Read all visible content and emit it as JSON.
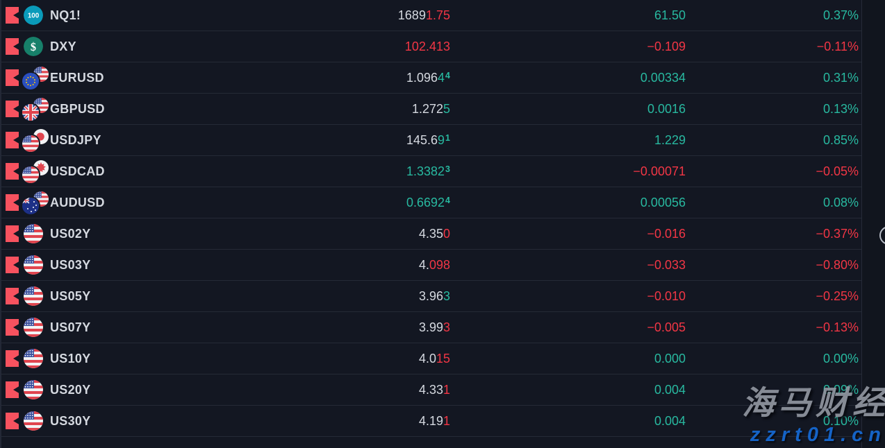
{
  "colors": {
    "up": "#28b9a0",
    "down": "#f23645",
    "neutral": "#d5d9e0",
    "flag": "#f7525f"
  },
  "watermark": {
    "line1": "海马财经",
    "line2": "zzrt01.cn"
  },
  "rows": [
    {
      "symbol": "NQ1!",
      "icon": {
        "name": "nq100-badge-icon",
        "kind": "badge",
        "badge": "nq",
        "label": "100"
      },
      "price_segments": [
        {
          "text": "1689",
          "dir": "neutral"
        },
        {
          "text": "1.75",
          "dir": "down"
        }
      ],
      "price_sup": null,
      "change": "61.50",
      "change_dir": "up",
      "percent": "0.37%",
      "percent_dir": "up"
    },
    {
      "symbol": "DXY",
      "icon": {
        "name": "dollar-index-icon",
        "kind": "badge",
        "badge": "dxy",
        "label": "$"
      },
      "price_segments": [
        {
          "text": "102.413",
          "dir": "down"
        }
      ],
      "price_sup": null,
      "change": "−0.109",
      "change_dir": "down",
      "percent": "−0.11%",
      "percent_dir": "down"
    },
    {
      "symbol": "EURUSD",
      "icon": {
        "name": "eurusd-pair-flags-icon",
        "kind": "pair",
        "front": "eu",
        "back": "us"
      },
      "price_segments": [
        {
          "text": "1.096",
          "dir": "neutral"
        },
        {
          "text": "4",
          "dir": "up"
        }
      ],
      "price_sup": {
        "text": "4",
        "dir": "up"
      },
      "change": "0.00334",
      "change_dir": "up",
      "percent": "0.31%",
      "percent_dir": "up"
    },
    {
      "symbol": "GBPUSD",
      "icon": {
        "name": "gbpusd-pair-flags-icon",
        "kind": "pair",
        "front": "gb",
        "back": "us"
      },
      "price_segments": [
        {
          "text": "1.272",
          "dir": "neutral"
        },
        {
          "text": "5",
          "dir": "up"
        }
      ],
      "price_sup": null,
      "change": "0.0016",
      "change_dir": "up",
      "percent": "0.13%",
      "percent_dir": "up"
    },
    {
      "symbol": "USDJPY",
      "icon": {
        "name": "usdjpy-pair-flags-icon",
        "kind": "pair",
        "front": "us",
        "back": "jp"
      },
      "price_segments": [
        {
          "text": "145.6",
          "dir": "neutral"
        },
        {
          "text": "9",
          "dir": "up"
        }
      ],
      "price_sup": {
        "text": "1",
        "dir": "up"
      },
      "change": "1.229",
      "change_dir": "up",
      "percent": "0.85%",
      "percent_dir": "up"
    },
    {
      "symbol": "USDCAD",
      "icon": {
        "name": "usdcad-pair-flags-icon",
        "kind": "pair",
        "front": "us",
        "back": "ca"
      },
      "price_segments": [
        {
          "text": "1.3382",
          "dir": "up"
        }
      ],
      "price_sup": {
        "text": "3",
        "dir": "up"
      },
      "change": "−0.00071",
      "change_dir": "down",
      "percent": "−0.05%",
      "percent_dir": "down"
    },
    {
      "symbol": "AUDUSD",
      "icon": {
        "name": "audusd-pair-flags-icon",
        "kind": "pair",
        "front": "au",
        "back": "us"
      },
      "price_segments": [
        {
          "text": "0.6692",
          "dir": "up"
        }
      ],
      "price_sup": {
        "text": "4",
        "dir": "up"
      },
      "change": "0.00056",
      "change_dir": "up",
      "percent": "0.08%",
      "percent_dir": "up"
    },
    {
      "symbol": "US02Y",
      "icon": {
        "name": "us-flag-icon",
        "kind": "single",
        "flag": "us"
      },
      "price_segments": [
        {
          "text": "4.35",
          "dir": "neutral"
        },
        {
          "text": "0",
          "dir": "down"
        }
      ],
      "price_sup": null,
      "change": "−0.016",
      "change_dir": "down",
      "percent": "−0.37%",
      "percent_dir": "down"
    },
    {
      "symbol": "US03Y",
      "icon": {
        "name": "us-flag-icon",
        "kind": "single",
        "flag": "us"
      },
      "price_segments": [
        {
          "text": "4.",
          "dir": "neutral"
        },
        {
          "text": "098",
          "dir": "down"
        }
      ],
      "price_sup": null,
      "change": "−0.033",
      "change_dir": "down",
      "percent": "−0.80%",
      "percent_dir": "down"
    },
    {
      "symbol": "US05Y",
      "icon": {
        "name": "us-flag-icon",
        "kind": "single",
        "flag": "us"
      },
      "price_segments": [
        {
          "text": "3.96",
          "dir": "neutral"
        },
        {
          "text": "3",
          "dir": "up"
        }
      ],
      "price_sup": null,
      "change": "−0.010",
      "change_dir": "down",
      "percent": "−0.25%",
      "percent_dir": "down"
    },
    {
      "symbol": "US07Y",
      "icon": {
        "name": "us-flag-icon",
        "kind": "single",
        "flag": "us"
      },
      "price_segments": [
        {
          "text": "3.99",
          "dir": "neutral"
        },
        {
          "text": "3",
          "dir": "down"
        }
      ],
      "price_sup": null,
      "change": "−0.005",
      "change_dir": "down",
      "percent": "−0.13%",
      "percent_dir": "down"
    },
    {
      "symbol": "US10Y",
      "icon": {
        "name": "us-flag-icon",
        "kind": "single",
        "flag": "us"
      },
      "price_segments": [
        {
          "text": "4.0",
          "dir": "neutral"
        },
        {
          "text": "15",
          "dir": "down"
        }
      ],
      "price_sup": null,
      "change": "0.000",
      "change_dir": "up",
      "percent": "0.00%",
      "percent_dir": "up"
    },
    {
      "symbol": "US20Y",
      "icon": {
        "name": "us-flag-icon",
        "kind": "single",
        "flag": "us"
      },
      "price_segments": [
        {
          "text": "4.33",
          "dir": "neutral"
        },
        {
          "text": "1",
          "dir": "down"
        }
      ],
      "price_sup": null,
      "change": "0.004",
      "change_dir": "up",
      "percent": "0.09%",
      "percent_dir": "up"
    },
    {
      "symbol": "US30Y",
      "icon": {
        "name": "us-flag-icon",
        "kind": "single",
        "flag": "us"
      },
      "price_segments": [
        {
          "text": "4.19",
          "dir": "neutral"
        },
        {
          "text": "1",
          "dir": "down"
        }
      ],
      "price_sup": null,
      "change": "0.004",
      "change_dir": "up",
      "percent": "0.10%",
      "percent_dir": "up"
    }
  ]
}
